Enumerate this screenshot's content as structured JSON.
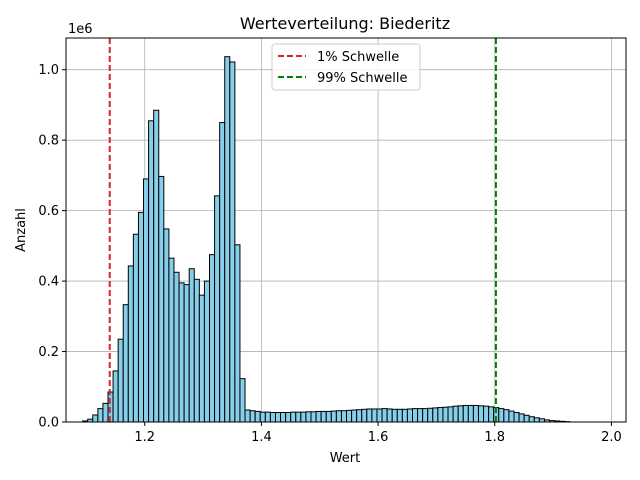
{
  "chart_data": {
    "type": "bar",
    "title": "Werteverteilung: Biederitz",
    "xlabel": "Wert",
    "ylabel": "Anzahl",
    "y_offset_label": "1e6",
    "xlim": [
      1.065,
      2.025
    ],
    "ylim": [
      0,
      1.09
    ],
    "xticks": [
      1.2,
      1.4,
      1.6,
      1.8,
      2.0
    ],
    "xtick_labels": [
      "1.2",
      "1.4",
      "1.6",
      "1.8",
      "2.0"
    ],
    "yticks": [
      0.0,
      0.2,
      0.4,
      0.6,
      0.8,
      1.0
    ],
    "ytick_labels": [
      "0.0",
      "0.2",
      "0.4",
      "0.6",
      "0.8",
      "1.0"
    ],
    "grid": true,
    "legend_position": "upper center",
    "bar_color": "#87ceeb",
    "bar_edge_color": "#000000",
    "bin_start": 1.0935,
    "bin_width": 0.0087,
    "values": [
      0.003,
      0.008,
      0.02,
      0.038,
      0.053,
      0.085,
      0.145,
      0.235,
      0.333,
      0.443,
      0.533,
      0.595,
      0.69,
      0.855,
      0.885,
      0.697,
      0.548,
      0.465,
      0.425,
      0.395,
      0.39,
      0.435,
      0.405,
      0.36,
      0.4,
      0.475,
      0.642,
      0.85,
      1.037,
      1.022,
      0.503,
      0.123,
      0.034,
      0.032,
      0.03,
      0.028,
      0.028,
      0.027,
      0.027,
      0.027,
      0.027,
      0.028,
      0.028,
      0.028,
      0.029,
      0.029,
      0.03,
      0.03,
      0.03,
      0.031,
      0.032,
      0.032,
      0.033,
      0.034,
      0.035,
      0.036,
      0.037,
      0.037,
      0.037,
      0.038,
      0.037,
      0.036,
      0.036,
      0.036,
      0.037,
      0.038,
      0.038,
      0.038,
      0.039,
      0.04,
      0.041,
      0.042,
      0.043,
      0.045,
      0.046,
      0.047,
      0.047,
      0.047,
      0.046,
      0.045,
      0.043,
      0.041,
      0.038,
      0.035,
      0.031,
      0.027,
      0.023,
      0.019,
      0.015,
      0.012,
      0.009,
      0.006,
      0.004,
      0.003,
      0.002,
      0.001
    ],
    "thresholds": [
      {
        "name": "1% Schwelle",
        "x": 1.14,
        "color": "#d62728"
      },
      {
        "name": "99% Schwelle",
        "x": 1.802,
        "color": "#008000"
      }
    ]
  }
}
